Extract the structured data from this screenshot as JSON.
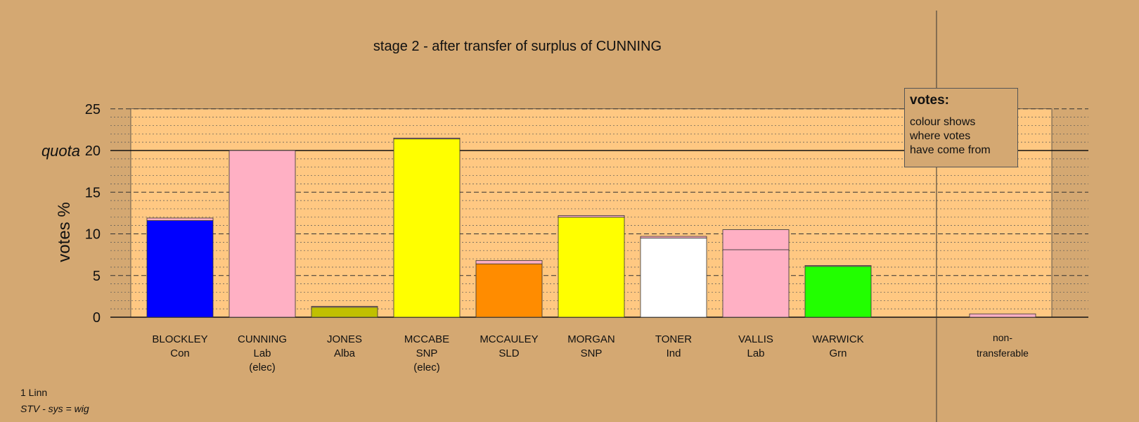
{
  "chart_data": {
    "type": "bar",
    "title": "stage 2 - after transfer of surplus of CUNNING",
    "ylabel": "votes %",
    "ylim": [
      0,
      25
    ],
    "yticks": [
      0,
      5,
      10,
      15,
      20,
      25
    ],
    "quota": 20,
    "quota_label": "quota",
    "grid": "dashed at 5, dotted at 1",
    "candidates": [
      {
        "name": "BLOCKLEY",
        "party": "Con",
        "status": "",
        "segments": [
          {
            "value": 11.6,
            "color": "#0000ff"
          },
          {
            "value": 0.3,
            "color": "#ffb0c4"
          }
        ]
      },
      {
        "name": "CUNNING",
        "party": "Lab",
        "status": "(elec)",
        "segments": [
          {
            "value": 20.0,
            "color": "#ffb0c4"
          }
        ]
      },
      {
        "name": "JONES",
        "party": "Alba",
        "status": "",
        "segments": [
          {
            "value": 1.2,
            "color": "#c0c000"
          },
          {
            "value": 0.1,
            "color": "#ffb0c4"
          }
        ]
      },
      {
        "name": "MCCABE",
        "party": "SNP",
        "status": "(elec)",
        "segments": [
          {
            "value": 21.4,
            "color": "#ffff00"
          },
          {
            "value": 0.1,
            "color": "#ffb0c4"
          }
        ]
      },
      {
        "name": "MCCAULEY",
        "party": "SLD",
        "status": "",
        "segments": [
          {
            "value": 6.4,
            "color": "#ff8c00"
          },
          {
            "value": 0.4,
            "color": "#ffb0c4"
          }
        ]
      },
      {
        "name": "MORGAN",
        "party": "SNP",
        "status": "",
        "segments": [
          {
            "value": 12.0,
            "color": "#ffff00"
          },
          {
            "value": 0.2,
            "color": "#ffb0c4"
          }
        ]
      },
      {
        "name": "TONER",
        "party": "Ind",
        "status": "",
        "segments": [
          {
            "value": 9.5,
            "color": "#ffffff"
          },
          {
            "value": 0.2,
            "color": "#ffb0c4"
          }
        ]
      },
      {
        "name": "VALLIS",
        "party": "Lab",
        "status": "",
        "segments": [
          {
            "value": 8.1,
            "color": "#ffb0c4"
          },
          {
            "value": 2.4,
            "color": "#ffb0c4"
          }
        ]
      },
      {
        "name": "WARWICK",
        "party": "Grn",
        "status": "",
        "segments": [
          {
            "value": 6.1,
            "color": "#22ff00"
          },
          {
            "value": 0.1,
            "color": "#ffb0c4"
          }
        ]
      }
    ],
    "nontransferable": {
      "label_line1": "non-",
      "label_line2": "transferable",
      "value": 0.4,
      "color": "#ffb0c4"
    }
  },
  "legend": {
    "title": "votes:",
    "lines": [
      "colour shows",
      "where votes",
      "have come from"
    ]
  },
  "footer": {
    "line1": "1 Linn",
    "line2": "STV - sys = wig"
  },
  "colors": {
    "background": "#d4a872",
    "plot_area": "#ffc882"
  }
}
